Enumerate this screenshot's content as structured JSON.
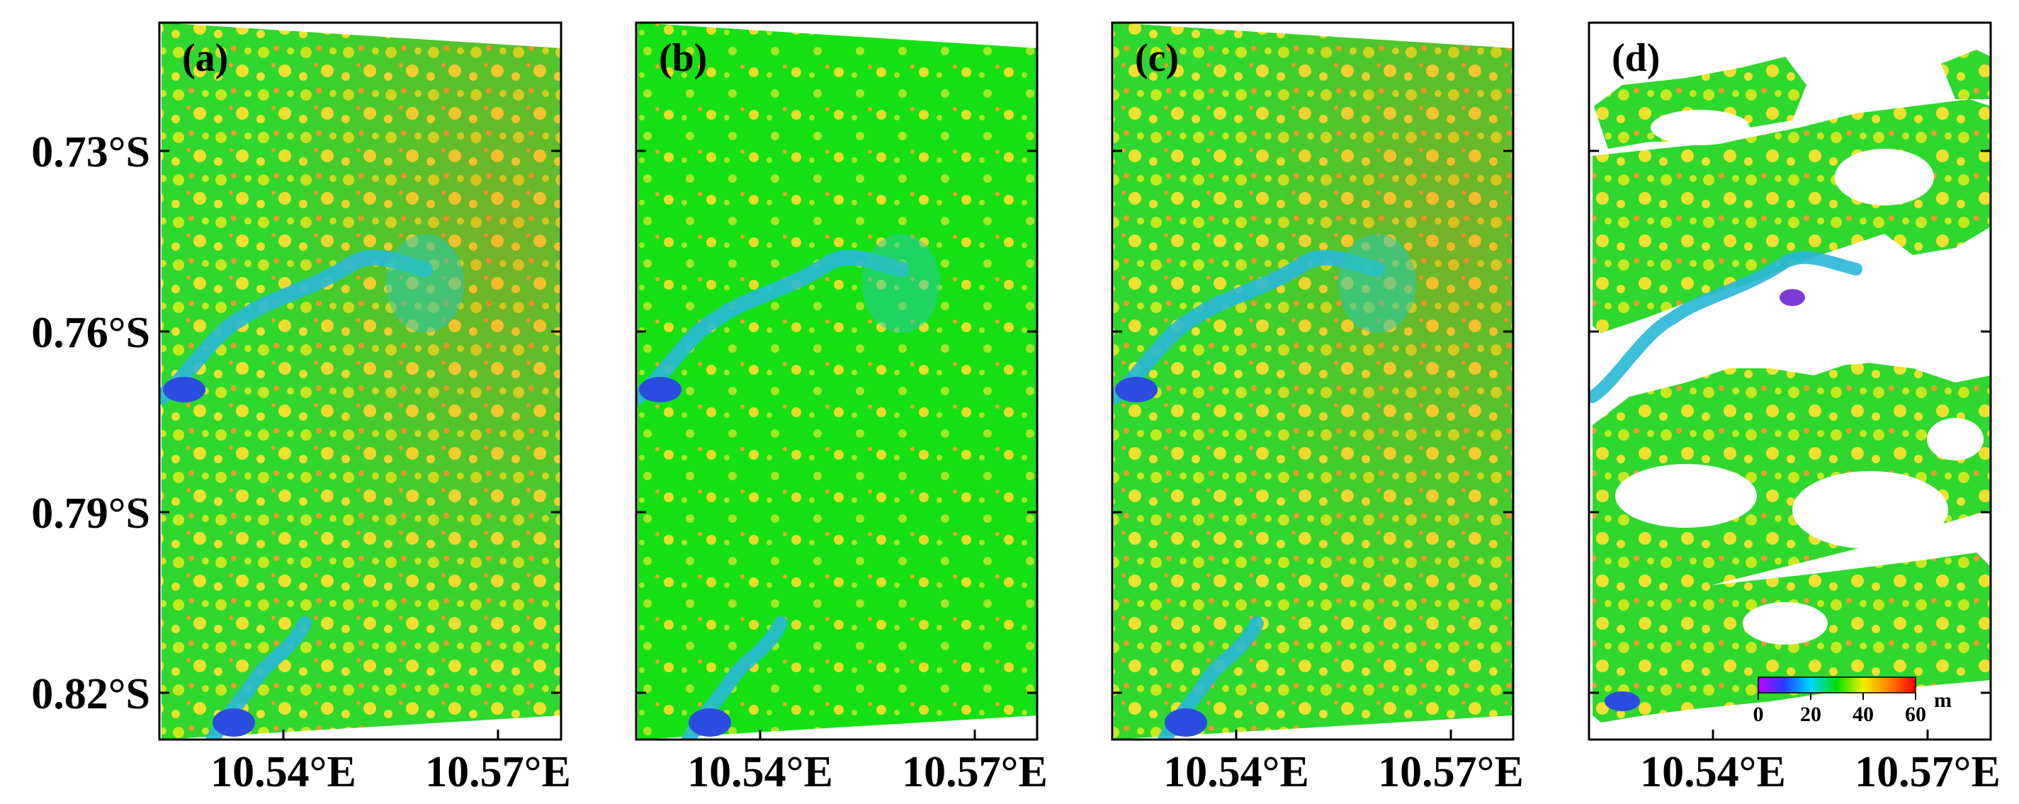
{
  "figure": {
    "panels": [
      {
        "id": "a",
        "label": "(a)",
        "colors": {
          "base": "#2ed82e",
          "accent1": "#c8e81e",
          "accent2": "#f0e030",
          "warm": "#f29a2c"
        }
      },
      {
        "id": "b",
        "label": "(b)",
        "colors": {
          "base": "#14e014",
          "accent1": "#a6e624",
          "accent2": "#eadc2a",
          "warm": "#f2a22c"
        }
      },
      {
        "id": "c",
        "label": "(c)",
        "colors": {
          "base": "#2ed82e",
          "accent1": "#c8e81e",
          "accent2": "#f0e030",
          "warm": "#f29a2c"
        }
      },
      {
        "id": "d",
        "label": "(d)",
        "colors": {
          "base": "#2ed82e",
          "accent1": "#c8e81e",
          "accent2": "#f0e030",
          "warm": "#f29a2c"
        }
      }
    ],
    "y_ticks": [
      {
        "value": 0.73,
        "label": "0.73°S"
      },
      {
        "value": 0.76,
        "label": "0.76°S"
      },
      {
        "value": 0.79,
        "label": "0.79°S"
      },
      {
        "value": 0.82,
        "label": "0.82°S"
      }
    ],
    "x_ticks": [
      {
        "value": 10.54,
        "label": "10.54°E"
      },
      {
        "value": 10.57,
        "label": "10.57°E"
      }
    ],
    "colorbar": {
      "unit": "m",
      "range": [
        0,
        60
      ],
      "ticks": [
        {
          "value": 0,
          "label": "0"
        },
        {
          "value": 20,
          "label": "20"
        },
        {
          "value": 40,
          "label": "40"
        },
        {
          "value": 60,
          "label": "60"
        }
      ],
      "colors": [
        "#c000ff",
        "#2040ff",
        "#00d8ff",
        "#00e000",
        "#f0f000",
        "#ff8000",
        "#ff0000"
      ]
    }
  }
}
